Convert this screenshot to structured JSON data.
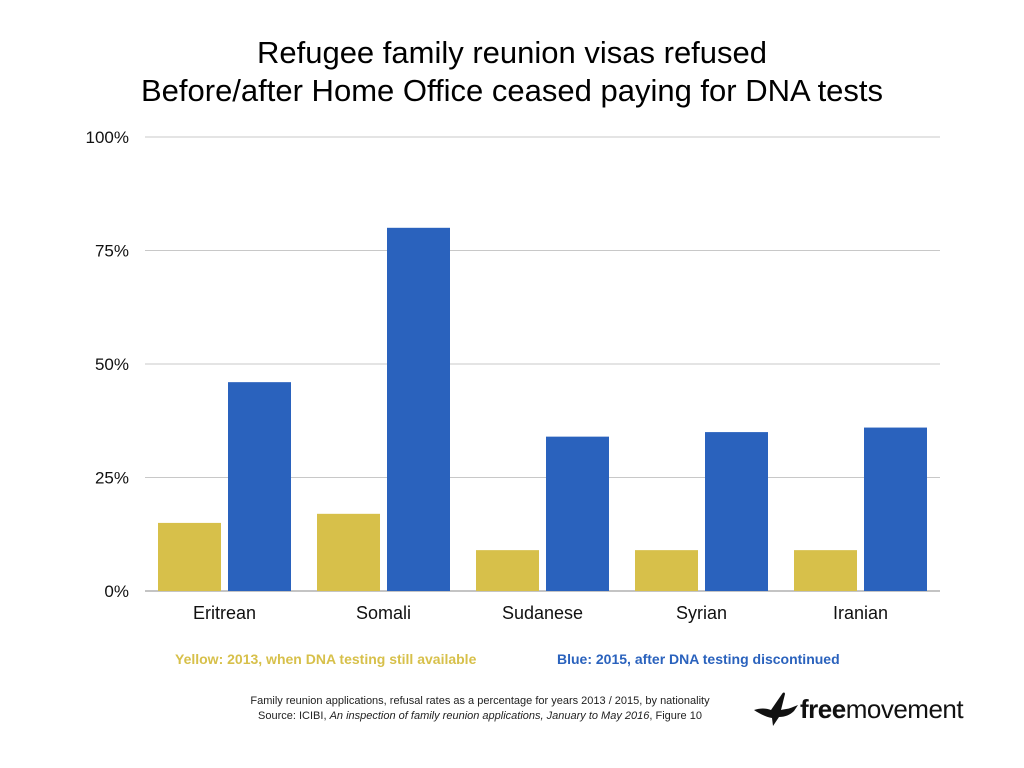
{
  "title": {
    "line1": "Refugee family reunion visas refused",
    "line2": "Before/after Home Office ceased paying for DNA tests"
  },
  "chart_data": {
    "type": "bar",
    "title": "Refugee family reunion visas refused / Before/after Home Office ceased paying for DNA tests",
    "categories": [
      "Eritrean",
      "Somali",
      "Sudanese",
      "Syrian",
      "Iranian"
    ],
    "series": [
      {
        "name": "Yellow: 2013, when DNA testing still available",
        "color": "#d7c04a",
        "values": [
          15,
          17,
          9,
          9,
          9
        ]
      },
      {
        "name": "Blue: 2015, after DNA testing discontinued",
        "color": "#2a62bd",
        "values": [
          46,
          80,
          34,
          35,
          36
        ]
      }
    ],
    "ylim": [
      0,
      100
    ],
    "yticks": [
      0,
      25,
      50,
      75,
      100
    ],
    "ytick_labels": [
      "0%",
      "25%",
      "50%",
      "75%",
      "100%"
    ],
    "grid": true,
    "legend_position": "bottom"
  },
  "legend": {
    "yellow": "Yellow: 2013, when DNA testing still available",
    "blue": "Blue: 2015, after DNA testing discontinued",
    "yellow_color": "#d7c04a",
    "blue_color": "#2a62bd"
  },
  "source": {
    "line1": "Family reunion applications, refusal rates as a percentage for years 2013 / 2015, by nationality",
    "line2_prefix": "Source: ICIBI, ",
    "line2_title": "An inspection of family reunion applications, January to May 2016",
    "line2_suffix": ", Figure 10"
  },
  "logo": {
    "bold": "free",
    "regular": "movement",
    "icon": "bird-icon"
  }
}
